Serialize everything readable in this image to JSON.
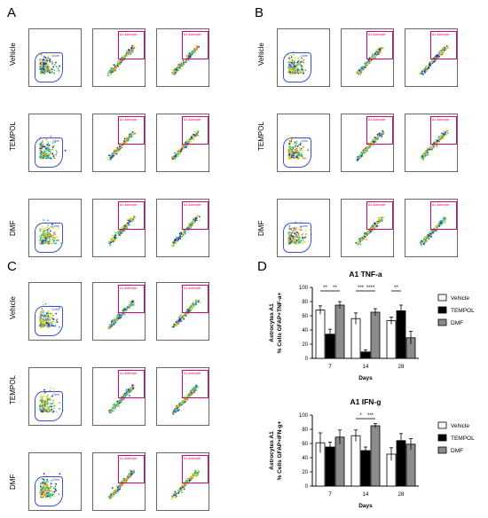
{
  "panels": {
    "A": {
      "letter": "A",
      "rows": [
        "Vehicle",
        "TEMPOL",
        "DMF"
      ]
    },
    "B": {
      "letter": "B",
      "rows": [
        "Vehicle",
        "TEMPOL",
        "DMF"
      ]
    },
    "C": {
      "letter": "C",
      "rows": [
        "Vehicle",
        "TEMPOL",
        "DMF"
      ]
    },
    "D": {
      "letter": "D"
    }
  },
  "flow": {
    "col1_header": "Sample3 / Time / Single cells",
    "col2_header": "Sample3 / Time / Single cells / Cells",
    "col3_header": "Sample3 / Time / Single cells / Cells",
    "col1_xlabel": "FSC-A (x10^3)",
    "col2_xlabel": "FITC - GFAP-A",
    "col3_xlabel": "FITC - GFAP-A",
    "cells_gate_label": "Cells",
    "a1_gate_label": "A1 astrocyte"
  },
  "colors": {
    "vehicle": "#ffffff",
    "tempol": "#000000",
    "dmf": "#8c8c8c",
    "gate": "#d4007f",
    "cells_gate": "#3b4fd8"
  },
  "chart_data": [
    {
      "type": "bar",
      "title": "A1 TNF-a",
      "xlabel": "Days",
      "ylabel": "Astrocytes A1\n% Cells GFAP+TNF-a+",
      "categories": [
        "7",
        "14",
        "28"
      ],
      "ylim": [
        0,
        100
      ],
      "yticks": [
        "0",
        "20",
        "40",
        "60",
        "80",
        "100"
      ],
      "series": [
        {
          "name": "Vehicle",
          "values": [
            68,
            56,
            53
          ],
          "errors": [
            6,
            8,
            5
          ]
        },
        {
          "name": "TEMPOL",
          "values": [
            34,
            9,
            67
          ],
          "errors": [
            7,
            3,
            8
          ]
        },
        {
          "name": "DMF",
          "values": [
            75,
            65,
            29
          ],
          "errors": [
            5,
            5,
            9
          ]
        }
      ],
      "significance": [
        "**",
        "**",
        "***",
        "****",
        "**"
      ]
    },
    {
      "type": "bar",
      "title": "A1 IFN-g",
      "xlabel": "Days",
      "ylabel": "Astrocytes A1\n% Cells GFAP+IFN-g+",
      "categories": [
        "7",
        "14",
        "28"
      ],
      "ylim": [
        0,
        100
      ],
      "yticks": [
        "0",
        "20",
        "40",
        "60",
        "80",
        "100"
      ],
      "series": [
        {
          "name": "Vehicle",
          "values": [
            61,
            71,
            45
          ],
          "errors": [
            14,
            8,
            9
          ]
        },
        {
          "name": "TEMPOL",
          "values": [
            55,
            50,
            64
          ],
          "errors": [
            7,
            5,
            10
          ]
        },
        {
          "name": "DMF",
          "values": [
            69,
            85,
            59
          ],
          "errors": [
            10,
            3,
            8
          ]
        }
      ],
      "significance": [
        "*",
        "***"
      ]
    }
  ]
}
